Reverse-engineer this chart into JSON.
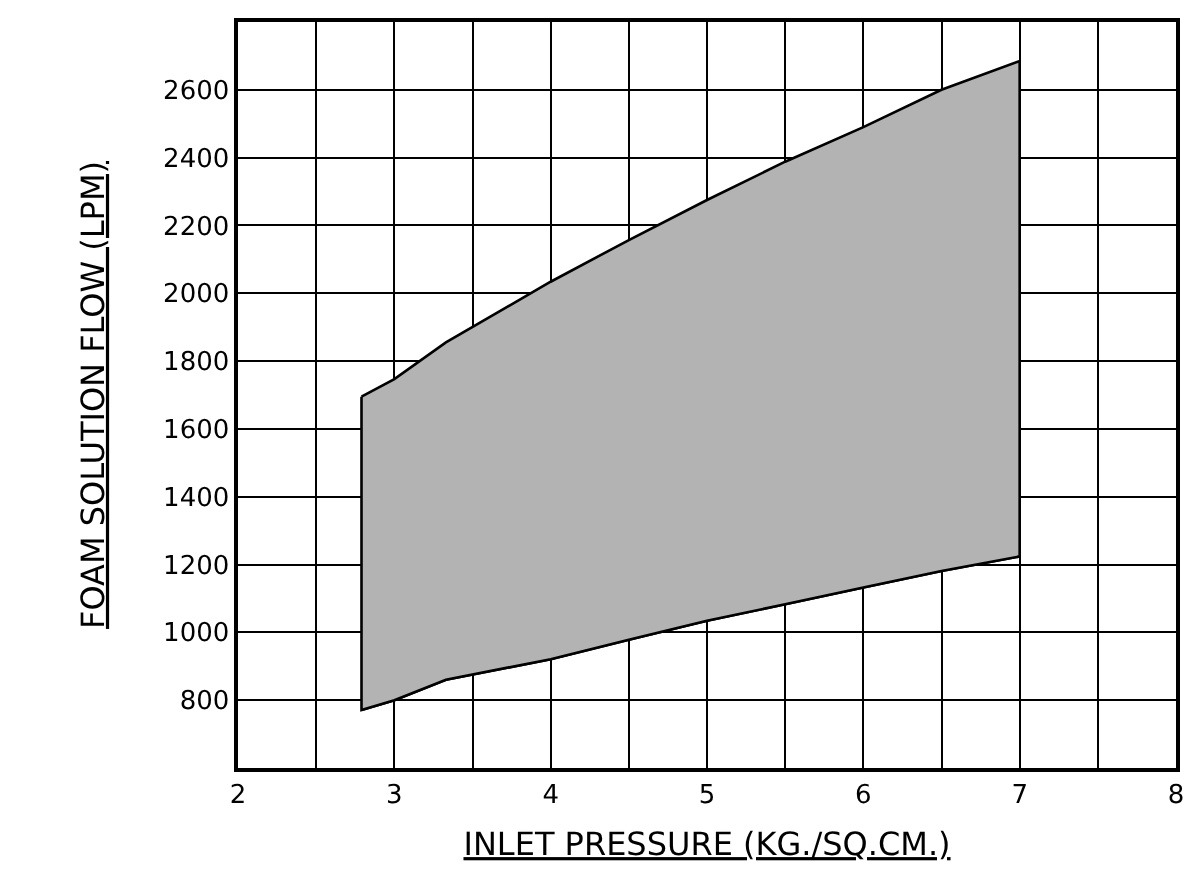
{
  "chart_data": {
    "type": "area",
    "xlabel": "INLET PRESSURE (KG./SQ.CM.)",
    "ylabel": "FOAM SOLUTION FLOW (LPM)",
    "series": [
      {
        "type": "line",
        "color": "#000000",
        "x": [
          2.79,
          3,
          3.33,
          4,
          4.5,
          5,
          5.5,
          6,
          6.5,
          7
        ],
        "values": [
          771,
          800,
          860,
          921,
          978,
          1034,
          1083,
          1132,
          1181,
          1224
        ]
      },
      {
        "color": "#b3b3b3",
        "x": [
          2.79,
          3,
          3.33,
          4,
          4.5,
          5,
          5.5,
          6,
          6.5,
          7
        ],
        "values": [
          1695,
          1747,
          1855,
          2034,
          2157,
          2275,
          2388,
          2490,
          2600,
          2685
        ]
      }
    ],
    "xlim": [
      2,
      8
    ],
    "xticks": [
      2,
      {
        "value": 2.5,
        "label": null
      },
      3,
      {
        "value": 3.5,
        "label": null
      },
      4,
      {
        "value": 4.5,
        "label": null
      },
      5,
      {
        "value": 5.5,
        "label": null
      },
      6,
      {
        "value": 6.5,
        "label": null
      },
      7,
      {
        "value": 7.5,
        "label": null
      },
      8
    ],
    "ylim": [
      600,
      2800
    ],
    "yticks": [
      800,
      1000,
      1200,
      1400,
      1600,
      1800,
      2000,
      2200,
      2400,
      2600
    ],
    "grid": true
  }
}
